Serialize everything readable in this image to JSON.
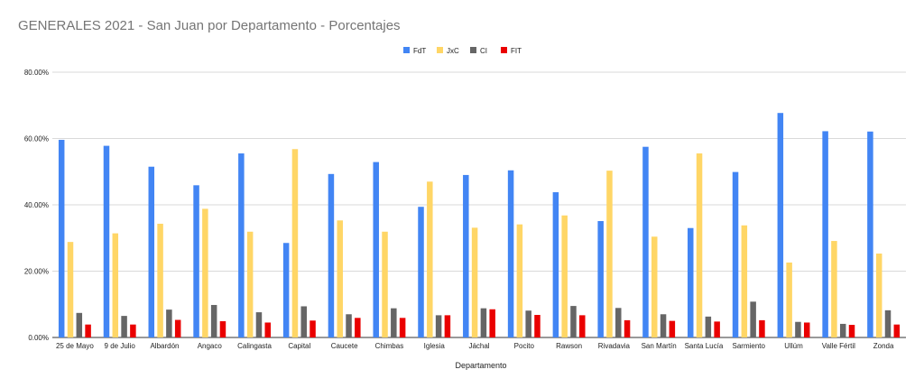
{
  "chart_data": {
    "type": "bar",
    "title": "GENERALES 2021 - San Juan por Departamento - Porcentajes",
    "xlabel": "Departamento",
    "ylabel": "",
    "ylim": [
      0,
      80
    ],
    "y_ticks": [
      "0.00%",
      "20.00%",
      "40.00%",
      "60.00%",
      "80.00%"
    ],
    "y_tick_values": [
      0,
      20,
      40,
      60,
      80
    ],
    "grid": true,
    "legend_position": "top-center",
    "categories": [
      "25 de Mayo",
      "9 de Julio",
      "Albardón",
      "Angaco",
      "Calingasta",
      "Capital",
      "Caucete",
      "Chimbas",
      "Iglesia",
      "Jáchal",
      "Pocito",
      "Rawson",
      "Rivadavia",
      "San Martín",
      "Santa Lucía",
      "Sarmiento",
      "Ullúm",
      "Valle Fértil",
      "Zonda"
    ],
    "series": [
      {
        "name": "FdT",
        "color": "#4285f4",
        "values": [
          59.6,
          57.8,
          51.5,
          45.9,
          55.5,
          28.5,
          49.3,
          52.9,
          39.4,
          49.0,
          50.4,
          43.8,
          35.1,
          57.5,
          33.0,
          49.9,
          67.7,
          62.2,
          62.1
        ]
      },
      {
        "name": "JxC",
        "color": "#ffd666",
        "values": [
          28.8,
          31.4,
          34.3,
          38.8,
          31.9,
          56.8,
          35.3,
          31.9,
          47.0,
          33.1,
          34.1,
          36.8,
          50.3,
          30.4,
          55.5,
          33.8,
          22.6,
          29.1,
          25.3
        ]
      },
      {
        "name": "CI",
        "color": "#666666",
        "values": [
          7.4,
          6.5,
          8.4,
          9.8,
          7.6,
          9.4,
          7.0,
          8.8,
          6.7,
          8.8,
          8.1,
          9.5,
          8.9,
          7.0,
          6.3,
          10.8,
          4.7,
          4.1,
          8.2
        ]
      },
      {
        "name": "FIT",
        "color": "#ea0000",
        "values": [
          3.9,
          3.9,
          5.3,
          4.9,
          4.5,
          5.1,
          5.9,
          5.9,
          6.7,
          8.5,
          6.8,
          6.7,
          5.2,
          5.0,
          4.8,
          5.2,
          4.5,
          3.8,
          3.9
        ]
      }
    ]
  }
}
